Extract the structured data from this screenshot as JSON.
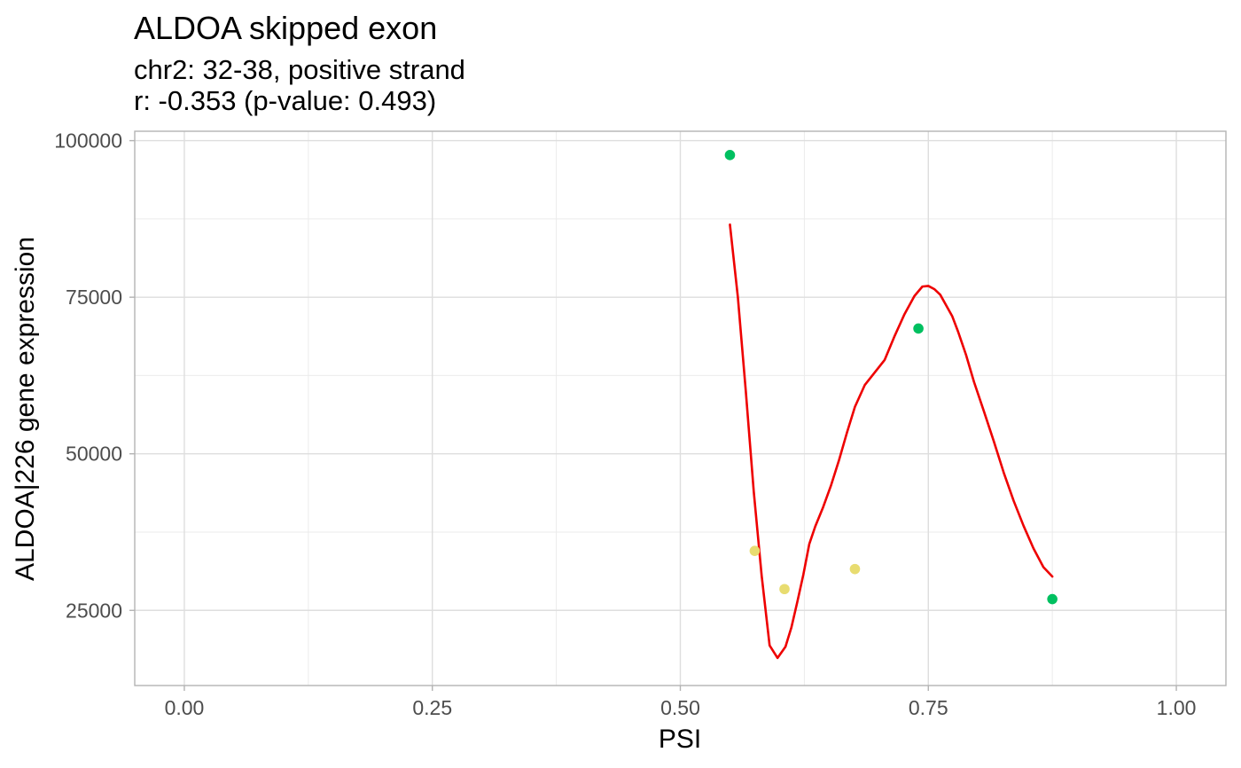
{
  "chart_data": {
    "type": "scatter",
    "title": "ALDOA skipped exon",
    "subtitle_lines": [
      "chr2: 32-38, positive strand",
      "r: -0.353 (p-value: 0.493)"
    ],
    "xlabel": "PSI",
    "ylabel": "ALDOA|226 gene expression",
    "xlim": [
      -0.05,
      1.05
    ],
    "ylim": [
      13000,
      101500
    ],
    "x_ticks": [
      0,
      0.25,
      0.5,
      0.75,
      1
    ],
    "x_tick_labels": [
      "0.00",
      "0.25",
      "0.50",
      "0.75",
      "1.00"
    ],
    "y_ticks": [
      25000,
      50000,
      75000,
      100000
    ],
    "y_tick_labels": [
      "25000",
      "50000",
      "75000",
      "100000"
    ],
    "grid": true,
    "legend": "none",
    "points": [
      {
        "x": 0.55,
        "y": 97700,
        "color": "#00c060"
      },
      {
        "x": 0.575,
        "y": 34500,
        "color": "#e8dc70"
      },
      {
        "x": 0.605,
        "y": 28400,
        "color": "#e8dc70"
      },
      {
        "x": 0.676,
        "y": 31600,
        "color": "#e8dc70"
      },
      {
        "x": 0.74,
        "y": 70000,
        "color": "#00c060"
      },
      {
        "x": 0.875,
        "y": 26800,
        "color": "#00c060"
      }
    ],
    "smooth_line": {
      "color": "#ee0000",
      "x": [
        0.55,
        0.558,
        0.566,
        0.574,
        0.582,
        0.59,
        0.598,
        0.606,
        0.612,
        0.618,
        0.624,
        0.63,
        0.636,
        0.644,
        0.652,
        0.66,
        0.668,
        0.676,
        0.686,
        0.696,
        0.706,
        0.716,
        0.726,
        0.736,
        0.744,
        0.75,
        0.756,
        0.762,
        0.768,
        0.774,
        0.78,
        0.788,
        0.796,
        0.806,
        0.816,
        0.826,
        0.836,
        0.846,
        0.856,
        0.866,
        0.875
      ],
      "y": [
        86600,
        75000,
        60000,
        44000,
        30500,
        19400,
        17400,
        19200,
        22300,
        26400,
        30700,
        35600,
        38400,
        41500,
        45000,
        49000,
        53400,
        57500,
        61000,
        63000,
        65000,
        68800,
        72300,
        75200,
        76700,
        76800,
        76300,
        75400,
        73700,
        72000,
        69500,
        65800,
        61500,
        56800,
        52000,
        47000,
        42500,
        38500,
        34900,
        31900,
        30400
      ]
    }
  }
}
